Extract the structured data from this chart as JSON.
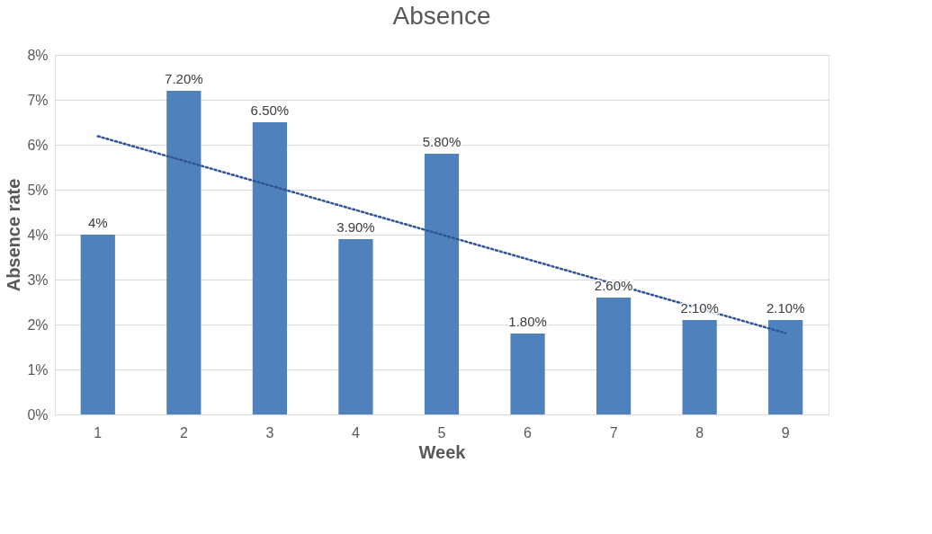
{
  "chart_data": {
    "type": "bar",
    "title": "Absence",
    "xlabel": "Week",
    "ylabel": "Absence rate",
    "categories": [
      "1",
      "2",
      "3",
      "4",
      "5",
      "6",
      "7",
      "8",
      "9"
    ],
    "series": [
      {
        "color": "#4f81bd",
        "values": [
          4,
          7.2,
          6.5,
          3.9,
          5.8,
          1.8,
          2.6,
          2.1,
          2.1
        ],
        "value_labels": [
          "4%",
          "7.20%",
          "6.50%",
          "3.90%",
          "5.80%",
          "1.80%",
          "2.60%",
          "2.10%",
          "2.10%"
        ]
      },
      {
        "type": "line",
        "color": "#2f5597",
        "line_style": "dotted",
        "x": [
          "1",
          "9"
        ],
        "values": [
          6.19,
          1.81
        ]
      }
    ],
    "ylim": [
      0,
      8
    ],
    "yticks": [
      {
        "value": 0,
        "label": "0%"
      },
      {
        "value": 1,
        "label": "1%"
      },
      {
        "value": 2,
        "label": "2%"
      },
      {
        "value": 3,
        "label": "3%"
      },
      {
        "value": 4,
        "label": "4%"
      },
      {
        "value": 5,
        "label": "5%"
      },
      {
        "value": 6,
        "label": "6%"
      },
      {
        "value": 7,
        "label": "7%"
      },
      {
        "value": 8,
        "label": "8%"
      }
    ],
    "grid": "y",
    "legend": false
  }
}
